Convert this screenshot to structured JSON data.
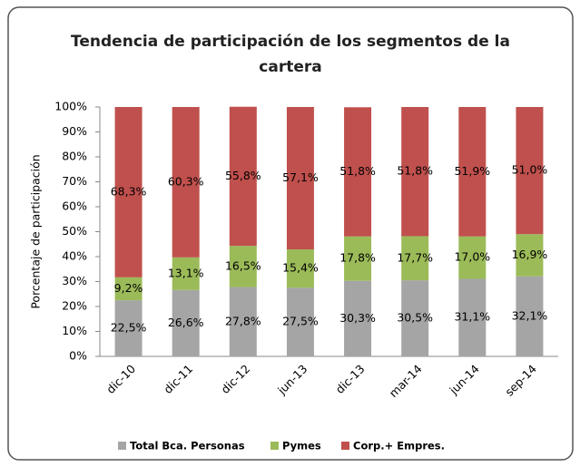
{
  "chart_data": {
    "type": "stacked_bar",
    "title": "Tendencia de participación de los segmentos de la cartera",
    "y_label": "Porcentaje de participación",
    "categories": [
      "dic-10",
      "dic-11",
      "dic-12",
      "jun-13",
      "dic-13",
      "mar-14",
      "jun-14",
      "sep-14"
    ],
    "series": [
      {
        "name": "Total Bca. Personas",
        "color": "#a5a5a5",
        "values": [
          22.5,
          26.6,
          27.8,
          27.5,
          30.3,
          30.5,
          31.1,
          32.1
        ],
        "value_labels": [
          "22,5%",
          "26,6%",
          "27,8%",
          "27,5%",
          "30,3%",
          "30,5%",
          "31,1%",
          "32,1%"
        ]
      },
      {
        "name": "Pymes",
        "color": "#9bbb59",
        "values": [
          9.2,
          13.1,
          16.5,
          15.4,
          17.8,
          17.7,
          17.0,
          16.9
        ],
        "value_labels": [
          "9,2%",
          "13,1%",
          "16,5%",
          "15,4%",
          "17,8%",
          "17,7%",
          "17,0%",
          "16,9%"
        ]
      },
      {
        "name": "Corp.+ Empres.",
        "color": "#c0504d",
        "values": [
          68.3,
          60.3,
          55.8,
          57.1,
          51.8,
          51.8,
          51.9,
          51.0
        ],
        "value_labels": [
          "68,3%",
          "60,3%",
          "55,8%",
          "57,1%",
          "51,8%",
          "51,8%",
          "51,9%",
          "51,0%"
        ]
      }
    ],
    "ylim": [
      0,
      100
    ],
    "yticks": [
      {
        "value": 0,
        "label": "0%"
      },
      {
        "value": 10,
        "label": "10%"
      },
      {
        "value": 20,
        "label": "20%"
      },
      {
        "value": 30,
        "label": "30%"
      },
      {
        "value": 40,
        "label": "40%"
      },
      {
        "value": 50,
        "label": "50%"
      },
      {
        "value": 60,
        "label": "60%"
      },
      {
        "value": 70,
        "label": "70%"
      },
      {
        "value": 80,
        "label": "80%"
      },
      {
        "value": 90,
        "label": "90%"
      },
      {
        "value": 100,
        "label": "100%"
      }
    ],
    "legend": "bottom",
    "grid": false
  }
}
